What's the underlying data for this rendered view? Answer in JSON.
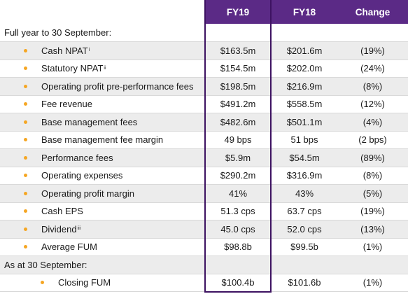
{
  "header": {
    "fy19": "FY19",
    "fy18": "FY18",
    "change": "Change"
  },
  "sections": [
    {
      "title": "Full year to 30 September:",
      "rows": [
        {
          "label": "Cash NPAT",
          "sup": "i",
          "fy19": "$163.5m",
          "fy18": "$201.6m",
          "change": "(19%)"
        },
        {
          "label": "Statutory NPAT",
          "sup": "ii",
          "fy19": "$154.5m",
          "fy18": "$202.0m",
          "change": "(24%)"
        },
        {
          "label": "Operating profit pre-performance fees",
          "sup": "",
          "fy19": "$198.5m",
          "fy18": "$216.9m",
          "change": "(8%)"
        },
        {
          "label": "Fee revenue",
          "sup": "",
          "fy19": "$491.2m",
          "fy18": "$558.5m",
          "change": "(12%)"
        },
        {
          "label": "Base management fees",
          "sup": "",
          "fy19": "$482.6m",
          "fy18": "$501.1m",
          "change": "(4%)"
        },
        {
          "label": "Base management fee margin",
          "sup": "",
          "fy19": "49 bps",
          "fy18": "51 bps",
          "change": "(2 bps)"
        },
        {
          "label": "Performance fees",
          "sup": "",
          "fy19": "$5.9m",
          "fy18": "$54.5m",
          "change": "(89%)"
        },
        {
          "label": "Operating expenses",
          "sup": "",
          "fy19": "$290.2m",
          "fy18": "$316.9m",
          "change": "(8%)"
        },
        {
          "label": "Operating profit margin",
          "sup": "",
          "fy19": "41%",
          "fy18": "43%",
          "change": "(5%)"
        },
        {
          "label": "Cash EPS",
          "sup": "",
          "fy19": "51.3 cps",
          "fy18": "63.7 cps",
          "change": "(19%)"
        },
        {
          "label": "Dividend",
          "sup": "iii",
          "fy19": "45.0 cps",
          "fy18": "52.0 cps",
          "change": "(13%)"
        },
        {
          "label": "Average FUM",
          "sup": "",
          "fy19": "$98.8b",
          "fy18": "$99.5b",
          "change": "(1%)"
        }
      ]
    },
    {
      "title": "As at 30 September:",
      "rows": [
        {
          "label": "Closing FUM",
          "sup": "",
          "fy19": "$100.4b",
          "fy18": "$101.6b",
          "change": "(1%)",
          "indent": true
        }
      ]
    }
  ],
  "colors": {
    "header_bg": "#5b2a86",
    "bullet": "#f5a623",
    "row_shade": "#ececec",
    "divider": "#3d1261"
  }
}
